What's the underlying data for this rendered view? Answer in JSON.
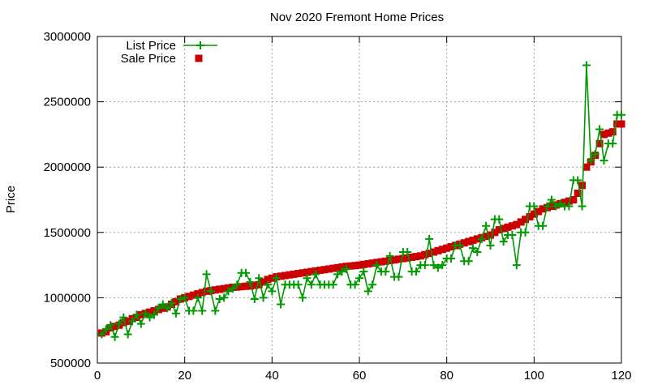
{
  "chart_data": {
    "type": "line",
    "title": "Nov 2020 Fremont Home Prices",
    "xlabel": "",
    "ylabel": "Price",
    "xlim": [
      0,
      120
    ],
    "ylim": [
      500000,
      3000000
    ],
    "x_ticks": [
      "0",
      "20",
      "40",
      "60",
      "80",
      "100",
      "120"
    ],
    "y_ticks": [
      "500000",
      "1000000",
      "1500000",
      "2000000",
      "2500000",
      "3000000"
    ],
    "grid": true,
    "legend_position": "top-left",
    "series": [
      {
        "name": "List Price",
        "style": "line-with-plus-markers",
        "color": "#009900",
        "values": [
          720000,
          760000,
          790000,
          700000,
          800000,
          850000,
          720000,
          820000,
          870000,
          800000,
          880000,
          850000,
          870000,
          920000,
          950000,
          920000,
          960000,
          880000,
          990000,
          1000000,
          900000,
          900000,
          1000000,
          900000,
          1180000,
          1050000,
          900000,
          990000,
          1000000,
          1050000,
          1070000,
          1100000,
          1190000,
          1190000,
          1120000,
          990000,
          1150000,
          1000000,
          1100000,
          1050000,
          1150000,
          950000,
          1100000,
          1100000,
          1100000,
          1100000,
          1000000,
          1150000,
          1100000,
          1180000,
          1100000,
          1100000,
          1100000,
          1100000,
          1180000,
          1200000,
          1220000,
          1100000,
          1100000,
          1150000,
          1200000,
          1050000,
          1100000,
          1250000,
          1200000,
          1200000,
          1320000,
          1160000,
          1160000,
          1350000,
          1350000,
          1200000,
          1200000,
          1250000,
          1250000,
          1450000,
          1250000,
          1230000,
          1250000,
          1300000,
          1300000,
          1400000,
          1400000,
          1280000,
          1280000,
          1380000,
          1350000,
          1450000,
          1550000,
          1400000,
          1600000,
          1600000,
          1430000,
          1480000,
          1480000,
          1250000,
          1500000,
          1500000,
          1700000,
          1700000,
          1550000,
          1550000,
          1700000,
          1750000,
          1700000,
          1720000,
          1700000,
          1700000,
          1900000,
          1900000,
          1700000,
          2780000,
          2050000,
          2100000,
          2290000,
          2050000,
          2180000,
          2180000,
          2400000,
          2400000
        ]
      },
      {
        "name": "Sale Price",
        "style": "square-markers",
        "color": "#cc0000",
        "values": [
          730000,
          740000,
          770000,
          780000,
          790000,
          810000,
          820000,
          840000,
          850000,
          870000,
          880000,
          890000,
          900000,
          910000,
          920000,
          930000,
          950000,
          970000,
          990000,
          1000000,
          1010000,
          1020000,
          1030000,
          1040000,
          1050000,
          1055000,
          1060000,
          1065000,
          1070000,
          1075000,
          1080000,
          1082000,
          1085000,
          1088000,
          1090000,
          1095000,
          1100000,
          1120000,
          1140000,
          1150000,
          1160000,
          1165000,
          1170000,
          1175000,
          1180000,
          1185000,
          1190000,
          1195000,
          1200000,
          1205000,
          1210000,
          1215000,
          1220000,
          1225000,
          1230000,
          1235000,
          1240000,
          1243000,
          1246000,
          1250000,
          1255000,
          1260000,
          1265000,
          1270000,
          1275000,
          1280000,
          1285000,
          1290000,
          1295000,
          1300000,
          1305000,
          1310000,
          1315000,
          1320000,
          1330000,
          1340000,
          1350000,
          1360000,
          1370000,
          1380000,
          1390000,
          1400000,
          1410000,
          1420000,
          1430000,
          1440000,
          1450000,
          1460000,
          1470000,
          1480000,
          1500000,
          1520000,
          1530000,
          1540000,
          1550000,
          1560000,
          1580000,
          1600000,
          1620000,
          1640000,
          1660000,
          1680000,
          1690000,
          1700000,
          1710000,
          1720000,
          1730000,
          1740000,
          1750000,
          1800000,
          1860000,
          2000000,
          2040000,
          2090000,
          2180000,
          2250000,
          2260000,
          2270000,
          2330000,
          2330000
        ]
      }
    ]
  }
}
